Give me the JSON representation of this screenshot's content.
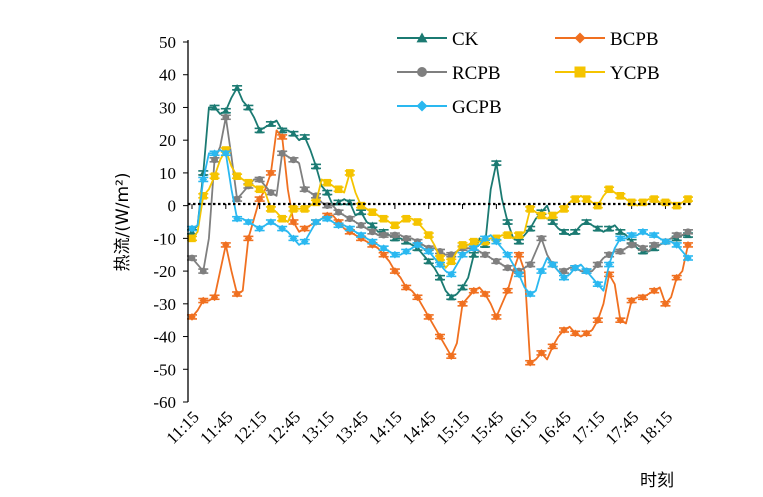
{
  "chart_data": {
    "type": "line",
    "ylabel": "热流/(W/m²)",
    "xlabel": "时刻",
    "ylim": [
      -60,
      50
    ],
    "yticks": [
      50,
      40,
      30,
      20,
      10,
      0,
      -10,
      -20,
      -30,
      -40,
      -50,
      -60
    ],
    "xtick_labels": [
      "11:15",
      "11:45",
      "12:15",
      "12:45",
      "13:15",
      "13:45",
      "14:15",
      "14:45",
      "15:15",
      "15:45",
      "16:15",
      "16:45",
      "17:15",
      "17:45",
      "18:15"
    ],
    "zero_line": "dotted",
    "legend_position": "top-right",
    "x": [
      "11:15",
      "11:20",
      "11:25",
      "11:30",
      "11:35",
      "11:40",
      "11:45",
      "11:50",
      "11:55",
      "12:00",
      "12:05",
      "12:10",
      "12:15",
      "12:20",
      "12:25",
      "12:30",
      "12:35",
      "12:40",
      "12:45",
      "12:50",
      "12:55",
      "13:00",
      "13:05",
      "13:10",
      "13:15",
      "13:20",
      "13:25",
      "13:30",
      "13:35",
      "13:40",
      "13:45",
      "13:50",
      "13:55",
      "14:00",
      "14:05",
      "14:10",
      "14:15",
      "14:20",
      "14:25",
      "14:30",
      "14:35",
      "14:40",
      "14:45",
      "14:50",
      "14:55",
      "15:00",
      "15:05",
      "15:10",
      "15:15",
      "15:20",
      "15:25",
      "15:30",
      "15:35",
      "15:40",
      "15:45",
      "15:50",
      "15:55",
      "16:00",
      "16:05",
      "16:10",
      "16:15",
      "16:20",
      "16:25",
      "16:30",
      "16:35",
      "16:40",
      "16:45",
      "16:50",
      "16:55",
      "17:00",
      "17:05",
      "17:10",
      "17:15",
      "17:20",
      "17:25",
      "17:30",
      "17:35",
      "17:40",
      "17:45",
      "17:50",
      "17:55",
      "18:00",
      "18:05",
      "18:10",
      "18:15",
      "18:20",
      "18:25",
      "18:30",
      "18:35"
    ],
    "series": [
      {
        "name": "CK",
        "color": "#1b7a72",
        "marker": "triangle",
        "values": [
          -8,
          -6,
          10,
          30,
          30,
          28,
          29,
          33,
          36,
          32,
          30,
          27,
          23,
          24,
          25,
          26,
          23,
          23,
          22,
          20,
          21,
          17,
          12,
          6,
          4,
          0,
          1,
          2,
          1,
          -3,
          -2,
          -5,
          -6,
          -8,
          -8,
          -9,
          -10,
          -10,
          -11,
          -12,
          -13,
          -15,
          -17,
          -19,
          -22,
          -26,
          -28,
          -27,
          -25,
          -22,
          -15,
          -10,
          -12,
          5,
          13,
          2,
          -5,
          -10,
          -11,
          -9,
          -7,
          -4,
          -2,
          0,
          -5,
          -7,
          -8,
          -9,
          -8,
          -6,
          -5,
          -6,
          -7,
          -8,
          -7,
          -6,
          -8,
          -9,
          -11,
          -13,
          -14,
          -14,
          -13,
          -12,
          -11,
          -10,
          -10,
          -9,
          -9
        ],
        "shown_count": 89
      },
      {
        "name": "BCPB",
        "color": "#f07020",
        "marker": "diamond",
        "values": [
          -34,
          -32,
          -29,
          -29,
          -28,
          -20,
          -12,
          -20,
          -27,
          -26,
          -10,
          -4,
          2,
          5,
          10,
          23,
          21,
          5,
          -5,
          -8,
          -7,
          -6,
          -5,
          -4,
          -3,
          -3,
          -5,
          -7,
          -8,
          -9,
          -10,
          -11,
          -12,
          -13,
          -15,
          -17,
          -20,
          -22,
          -25,
          -26,
          -28,
          -31,
          -34,
          -37,
          -40,
          -43,
          -46,
          -42,
          -30,
          -28,
          -26,
          -25,
          -27,
          -30,
          -34,
          -30,
          -26,
          -20,
          -15,
          -20,
          -48,
          -47,
          -45,
          -47,
          -43,
          -40,
          -38,
          -37,
          -39,
          -40,
          -39,
          -38,
          -35,
          -30,
          -21,
          -24,
          -35,
          -36,
          -29,
          -28,
          -28,
          -27,
          -26,
          -25,
          -30,
          -28,
          -22,
          -20,
          -12
        ],
        "shown_count": 89
      },
      {
        "name": "RCPB",
        "color": "#7f7f7f",
        "marker": "circle",
        "values": [
          -16,
          -18,
          -20,
          -10,
          14,
          18,
          27,
          15,
          2,
          4,
          6,
          8,
          8,
          6,
          4,
          3,
          16,
          15,
          14,
          13,
          5,
          4,
          3,
          1,
          0,
          0,
          -2,
          -3,
          -4,
          -5,
          -6,
          -7,
          -8,
          -9,
          -9,
          -9,
          -9,
          -9,
          -10,
          -10,
          -11,
          -12,
          -13,
          -13,
          -14,
          -15,
          -15,
          -14,
          -13,
          -13,
          -13,
          -14,
          -15,
          -16,
          -17,
          -18,
          -19,
          -20,
          -20,
          -19,
          -18,
          -14,
          -10,
          -15,
          -18,
          -20,
          -20,
          -19,
          -19,
          -20,
          -20,
          -20,
          -18,
          -16,
          -15,
          -14,
          -14,
          -13,
          -12,
          -12,
          -13,
          -14,
          -12,
          -12,
          -11,
          -10,
          -9,
          -9,
          -8
        ],
        "shown_count": 89
      },
      {
        "name": "YCPB",
        "color": "#f5c400",
        "marker": "square",
        "values": [
          -10,
          -8,
          3,
          5,
          9,
          14,
          17,
          12,
          9,
          8,
          7,
          6,
          5,
          4,
          -1,
          -2,
          -4,
          -5,
          -1,
          -1,
          -1,
          0,
          1,
          8,
          7,
          6,
          5,
          4,
          10,
          4,
          0,
          -1,
          -2,
          -3,
          -4,
          -5,
          -6,
          -5,
          -4,
          -4,
          -5,
          -7,
          -9,
          -12,
          -16,
          -19,
          -17,
          -14,
          -12,
          -12,
          -11,
          -11,
          -11,
          -10,
          -10,
          -9,
          -9,
          -10,
          -9,
          -8,
          -1,
          -2,
          -3,
          -4,
          -3,
          -2,
          -1,
          1,
          2,
          3,
          2,
          1,
          0,
          3,
          5,
          4,
          3,
          2,
          1,
          0,
          1,
          2,
          2,
          1,
          1,
          1,
          0,
          1,
          2
        ],
        "shown_count": 89
      },
      {
        "name": "GCPB",
        "color": "#2ab8f0",
        "marker": "diamond",
        "values": [
          -7,
          -6,
          8,
          16,
          16,
          17,
          16,
          5,
          -4,
          -4,
          -5,
          -6,
          -7,
          -6,
          -5,
          -6,
          -7,
          -8,
          -10,
          -12,
          -11,
          -8,
          -5,
          -4,
          -4,
          -5,
          -6,
          -6,
          -7,
          -8,
          -9,
          -10,
          -11,
          -12,
          -13,
          -14,
          -15,
          -15,
          -14,
          -13,
          -12,
          -13,
          -14,
          -16,
          -18,
          -20,
          -21,
          -18,
          -15,
          -14,
          -13,
          -12,
          -10,
          -9,
          -11,
          -13,
          -15,
          -18,
          -21,
          -25,
          -27,
          -26,
          -20,
          -16,
          -18,
          -20,
          -22,
          -21,
          -19,
          -18,
          -20,
          -22,
          -24,
          -26,
          -18,
          -13,
          -10,
          -10,
          -9,
          -9,
          -8,
          -9,
          -9,
          -10,
          -11,
          -11,
          -12,
          -14,
          -16
        ],
        "shown_count": 89
      }
    ]
  }
}
